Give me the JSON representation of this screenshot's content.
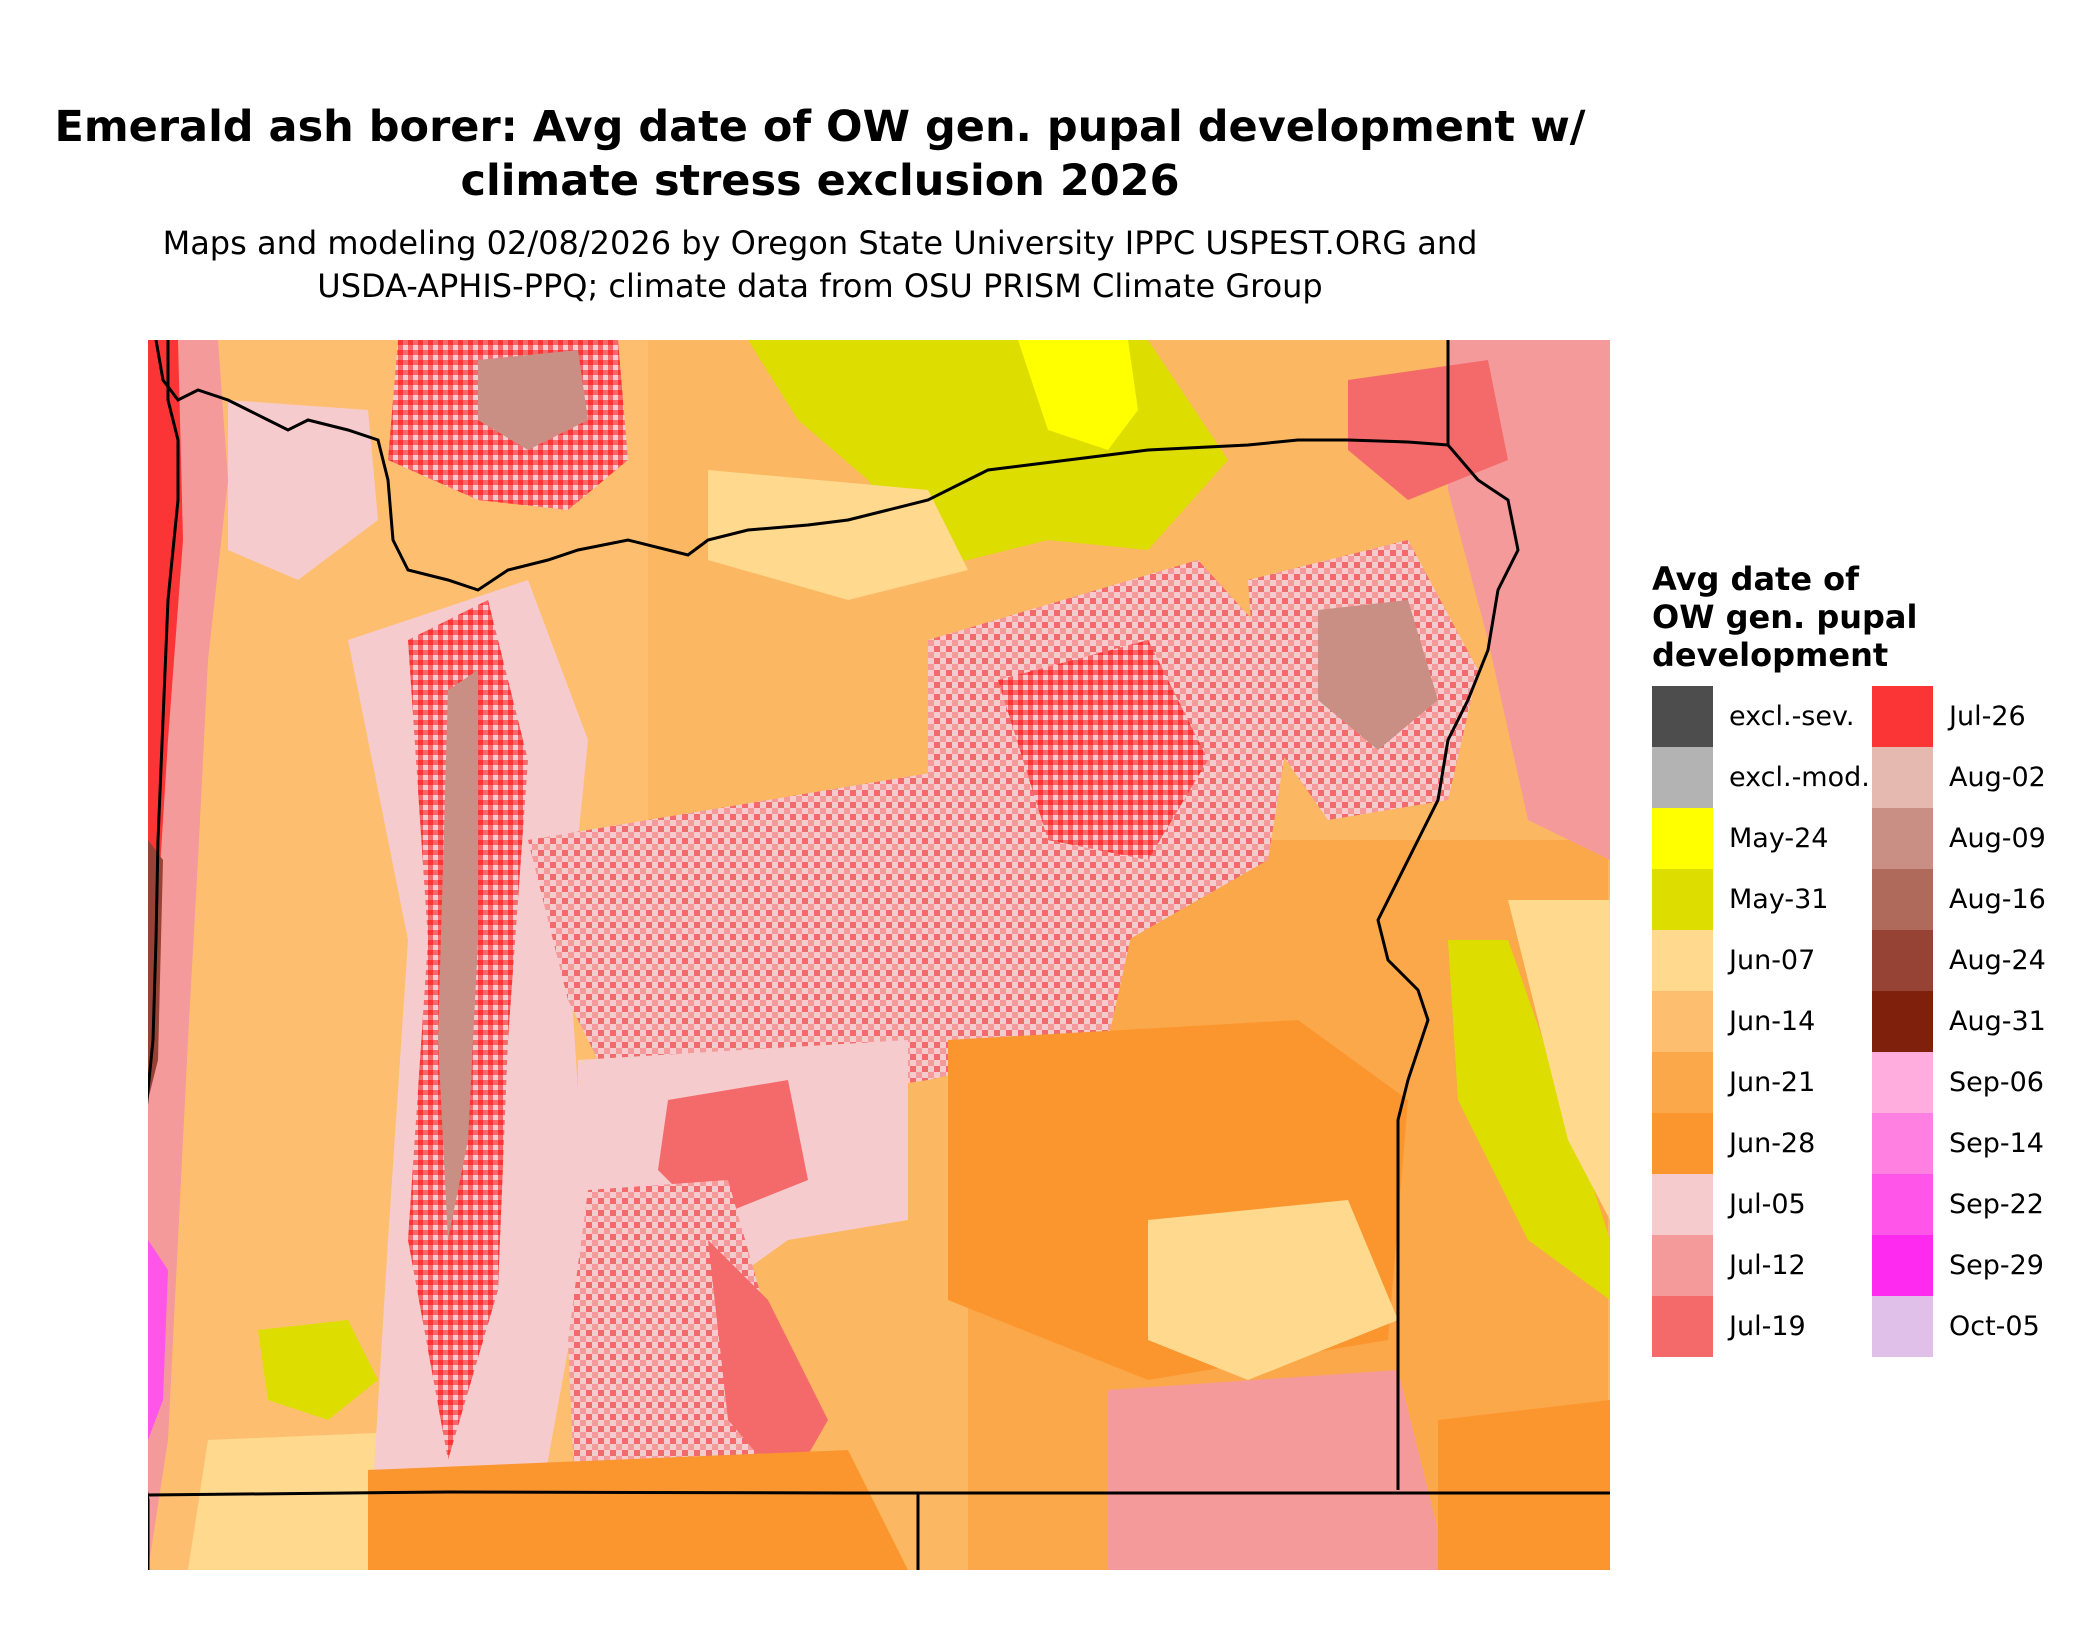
{
  "title_line1": "Emerald ash borer: Avg date of OW gen. pupal development w/",
  "title_line2": "climate stress exclusion 2026",
  "subtitle_line1": "Maps and modeling 02/08/2026 by Oregon State University IPPC USPEST.ORG and",
  "subtitle_line2": "USDA-APHIS-PPQ; climate data from OSU PRISM Climate Group",
  "legend": {
    "title_line1": "Avg date of",
    "title_line2": "OW gen. pupal",
    "title_line3": "development",
    "items": [
      {
        "label": "excl.-sev.",
        "color": "#4d4d4d"
      },
      {
        "label": "excl.-mod.",
        "color": "#b3b3b3"
      },
      {
        "label": "May-24",
        "color": "#ffff00"
      },
      {
        "label": "May-31",
        "color": "#dddd00"
      },
      {
        "label": "Jun-07",
        "color": "#ffd98e"
      },
      {
        "label": "Jun-14",
        "color": "#fdbf6f"
      },
      {
        "label": "Jun-21",
        "color": "#fba84a"
      },
      {
        "label": "Jun-28",
        "color": "#fb962f"
      },
      {
        "label": "Jul-05",
        "color": "#f6cbcd"
      },
      {
        "label": "Jul-12",
        "color": "#f59a9a"
      },
      {
        "label": "Jul-19",
        "color": "#f46a6a"
      },
      {
        "label": "Jul-26",
        "color": "#fb3535"
      },
      {
        "label": "Aug-02",
        "color": "#e5b8b0"
      },
      {
        "label": "Aug-09",
        "color": "#c98f84"
      },
      {
        "label": "Aug-16",
        "color": "#b06a5c"
      },
      {
        "label": "Aug-24",
        "color": "#964234"
      },
      {
        "label": "Aug-31",
        "color": "#7f200c"
      },
      {
        "label": "Sep-06",
        "color": "#ffacde"
      },
      {
        "label": "Sep-14",
        "color": "#ff80e0"
      },
      {
        "label": "Sep-22",
        "color": "#ff55e8"
      },
      {
        "label": "Sep-29",
        "color": "#ff2aef"
      },
      {
        "label": "Oct-05",
        "color": "#e0c0e8"
      }
    ]
  }
}
